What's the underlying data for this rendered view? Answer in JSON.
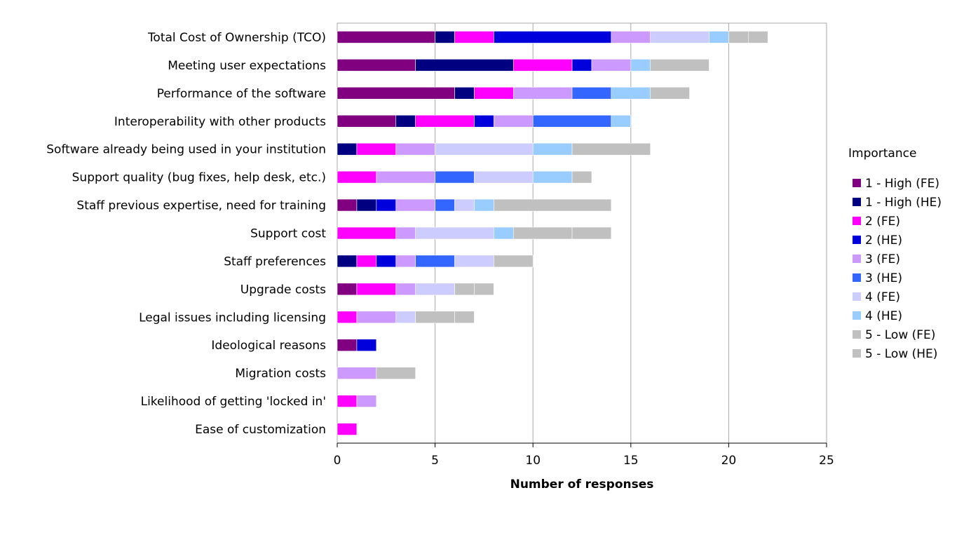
{
  "chart_data": {
    "type": "bar",
    "orientation": "horizontal",
    "stacked": true,
    "xlabel": "Number of responses",
    "ylabel": "",
    "xlim": [
      0,
      25
    ],
    "xticks": [
      0,
      5,
      10,
      15,
      20,
      25
    ],
    "grid": true,
    "legend_title": "Importance",
    "legend_position": "right",
    "categories": [
      "Total Cost of Ownership (TCO)",
      "Meeting user expectations",
      "Performance of the software",
      "Interoperability with other products",
      "Software already being used in your institution",
      "Support quality (bug fixes, help desk, etc.)",
      "Staff previous expertise, need for training",
      "Support cost",
      "Staff preferences",
      "Upgrade costs",
      "Legal issues including licensing",
      "Ideological reasons",
      "Migration costs",
      "Likelihood of getting 'locked in'",
      "Ease of customization"
    ],
    "series": [
      {
        "name": "1 - High (FE)",
        "color": "#800080",
        "values": [
          5,
          4,
          6,
          3,
          0,
          0,
          1,
          0,
          0,
          1,
          0,
          1,
          0,
          0,
          0
        ]
      },
      {
        "name": "1 - High (HE)",
        "color": "#000080",
        "values": [
          1,
          5,
          1,
          1,
          1,
          0,
          1,
          0,
          1,
          0,
          0,
          0,
          0,
          0,
          0
        ]
      },
      {
        "name": "2 (FE)",
        "color": "#ff00ff",
        "values": [
          2,
          3,
          2,
          3,
          2,
          2,
          0,
          3,
          1,
          2,
          1,
          0,
          0,
          1,
          1
        ]
      },
      {
        "name": "2 (HE)",
        "color": "#0000dd",
        "values": [
          6,
          1,
          0,
          1,
          0,
          0,
          1,
          0,
          1,
          0,
          0,
          1,
          0,
          0,
          0
        ]
      },
      {
        "name": "3 (FE)",
        "color": "#cc99ff",
        "values": [
          2,
          2,
          3,
          2,
          2,
          3,
          2,
          1,
          1,
          1,
          2,
          0,
          2,
          1,
          0
        ]
      },
      {
        "name": "3 (HE)",
        "color": "#3366ff",
        "values": [
          0,
          0,
          2,
          4,
          0,
          2,
          1,
          0,
          2,
          0,
          0,
          0,
          0,
          0,
          0
        ]
      },
      {
        "name": "4 (FE)",
        "color": "#ccccff",
        "values": [
          3,
          0,
          0,
          0,
          5,
          3,
          1,
          4,
          2,
          2,
          1,
          0,
          0,
          0,
          0
        ]
      },
      {
        "name": "4 (HE)",
        "color": "#99ccff",
        "values": [
          1,
          1,
          2,
          1,
          2,
          2,
          1,
          1,
          0,
          0,
          0,
          0,
          0,
          0,
          0
        ]
      },
      {
        "name": "5 - Low (FE)",
        "color": "#c0c0c0",
        "values": [
          1,
          3,
          2,
          0,
          4,
          1,
          6,
          3,
          2,
          1,
          2,
          0,
          2,
          0,
          0
        ]
      },
      {
        "name": "5 - Low (HE)",
        "color": "#c0c0c0",
        "values": [
          1,
          0,
          0,
          0,
          0,
          0,
          0,
          2,
          0,
          1,
          1,
          0,
          0,
          0,
          0
        ]
      }
    ]
  }
}
